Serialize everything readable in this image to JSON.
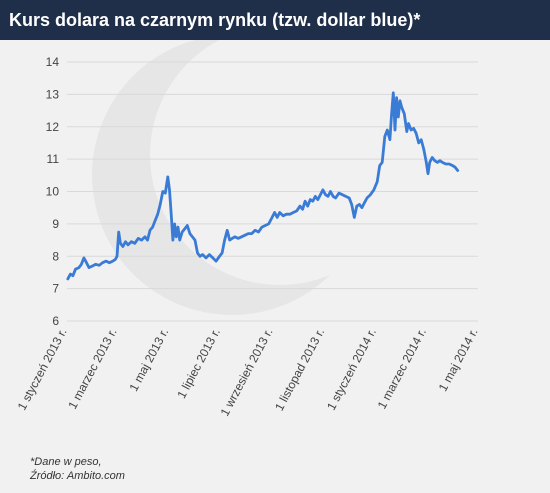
{
  "title": "Kurs dolara na czarnym rynku (tzw. dollar blue)*",
  "footer": {
    "note": "*Dane w peso,",
    "source": "Źródło: Ambito.com"
  },
  "colors": {
    "title_bg": "#1f2f4a",
    "line": "#3a7bd5",
    "background": "#f1f1f1",
    "grid": "#d9d9d9"
  },
  "chart_data": {
    "type": "line",
    "title": "Kurs dolara na czarnym rynku (tzw. dollar blue)*",
    "xlabel": "",
    "ylabel": "",
    "ylim": [
      6,
      14
    ],
    "yticks": [
      6,
      7,
      8,
      9,
      10,
      11,
      12,
      13,
      14
    ],
    "grid": true,
    "xlim": [
      "2013-01-01",
      "2014-05-01"
    ],
    "xtick_labels": [
      {
        "date": "2013-01-01",
        "label": "1 styczeń 2013 r."
      },
      {
        "date": "2013-03-01",
        "label": "1 marzec 2013 r."
      },
      {
        "date": "2013-05-01",
        "label": "1 maj 2013 r."
      },
      {
        "date": "2013-07-01",
        "label": "1 lipiec 2013 r."
      },
      {
        "date": "2013-09-01",
        "label": "1 wrzesień 2013 r."
      },
      {
        "date": "2013-11-01",
        "label": "1 listopad 2013 r."
      },
      {
        "date": "2014-01-01",
        "label": "1 styczeń 2014 r."
      },
      {
        "date": "2014-03-01",
        "label": "1 marzec 2014 r."
      },
      {
        "date": "2014-05-01",
        "label": "1 maj 2014 r."
      }
    ],
    "series": [
      {
        "points": [
          [
            "2013-01-02",
            7.3
          ],
          [
            "2013-01-05",
            7.45
          ],
          [
            "2013-01-08",
            7.4
          ],
          [
            "2013-01-11",
            7.6
          ],
          [
            "2013-01-15",
            7.65
          ],
          [
            "2013-01-18",
            7.75
          ],
          [
            "2013-01-21",
            7.95
          ],
          [
            "2013-01-24",
            7.8
          ],
          [
            "2013-01-27",
            7.65
          ],
          [
            "2013-01-31",
            7.7
          ],
          [
            "2013-02-04",
            7.75
          ],
          [
            "2013-02-08",
            7.72
          ],
          [
            "2013-02-12",
            7.8
          ],
          [
            "2013-02-16",
            7.85
          ],
          [
            "2013-02-20",
            7.8
          ],
          [
            "2013-02-24",
            7.85
          ],
          [
            "2013-02-27",
            7.9
          ],
          [
            "2013-03-01",
            8.0
          ],
          [
            "2013-03-03",
            8.75
          ],
          [
            "2013-03-05",
            8.4
          ],
          [
            "2013-03-08",
            8.3
          ],
          [
            "2013-03-11",
            8.45
          ],
          [
            "2013-03-14",
            8.35
          ],
          [
            "2013-03-18",
            8.45
          ],
          [
            "2013-03-22",
            8.4
          ],
          [
            "2013-03-26",
            8.55
          ],
          [
            "2013-03-30",
            8.5
          ],
          [
            "2013-04-03",
            8.6
          ],
          [
            "2013-04-06",
            8.5
          ],
          [
            "2013-04-09",
            8.8
          ],
          [
            "2013-04-12",
            8.9
          ],
          [
            "2013-04-15",
            9.1
          ],
          [
            "2013-04-18",
            9.3
          ],
          [
            "2013-04-21",
            9.6
          ],
          [
            "2013-04-24",
            10.0
          ],
          [
            "2013-04-27",
            9.95
          ],
          [
            "2013-04-30",
            10.45
          ],
          [
            "2013-05-02",
            10.05
          ],
          [
            "2013-05-04",
            9.3
          ],
          [
            "2013-05-06",
            8.5
          ],
          [
            "2013-05-08",
            9.0
          ],
          [
            "2013-05-10",
            8.6
          ],
          [
            "2013-05-12",
            8.9
          ],
          [
            "2013-05-14",
            8.5
          ],
          [
            "2013-05-17",
            8.75
          ],
          [
            "2013-05-20",
            8.85
          ],
          [
            "2013-05-23",
            8.95
          ],
          [
            "2013-05-26",
            8.7
          ],
          [
            "2013-05-29",
            8.6
          ],
          [
            "2013-06-01",
            8.5
          ],
          [
            "2013-06-04",
            8.1
          ],
          [
            "2013-06-07",
            8.0
          ],
          [
            "2013-06-10",
            8.05
          ],
          [
            "2013-06-14",
            7.95
          ],
          [
            "2013-06-18",
            8.05
          ],
          [
            "2013-06-22",
            7.95
          ],
          [
            "2013-06-26",
            7.85
          ],
          [
            "2013-06-30",
            8.0
          ],
          [
            "2013-07-03",
            8.1
          ],
          [
            "2013-07-06",
            8.5
          ],
          [
            "2013-07-09",
            8.8
          ],
          [
            "2013-07-12",
            8.5
          ],
          [
            "2013-07-15",
            8.55
          ],
          [
            "2013-07-18",
            8.6
          ],
          [
            "2013-07-22",
            8.55
          ],
          [
            "2013-07-26",
            8.6
          ],
          [
            "2013-07-30",
            8.65
          ],
          [
            "2013-08-03",
            8.7
          ],
          [
            "2013-08-07",
            8.7
          ],
          [
            "2013-08-11",
            8.8
          ],
          [
            "2013-08-15",
            8.75
          ],
          [
            "2013-08-19",
            8.9
          ],
          [
            "2013-08-23",
            8.95
          ],
          [
            "2013-08-27",
            9.0
          ],
          [
            "2013-08-31",
            9.2
          ],
          [
            "2013-09-03",
            9.35
          ],
          [
            "2013-09-06",
            9.2
          ],
          [
            "2013-09-09",
            9.35
          ],
          [
            "2013-09-13",
            9.25
          ],
          [
            "2013-09-17",
            9.3
          ],
          [
            "2013-09-21",
            9.3
          ],
          [
            "2013-09-25",
            9.35
          ],
          [
            "2013-09-29",
            9.4
          ],
          [
            "2013-10-03",
            9.55
          ],
          [
            "2013-10-06",
            9.45
          ],
          [
            "2013-10-09",
            9.7
          ],
          [
            "2013-10-12",
            9.55
          ],
          [
            "2013-10-15",
            9.75
          ],
          [
            "2013-10-18",
            9.7
          ],
          [
            "2013-10-21",
            9.85
          ],
          [
            "2013-10-24",
            9.75
          ],
          [
            "2013-10-27",
            9.9
          ],
          [
            "2013-10-30",
            10.05
          ],
          [
            "2013-11-02",
            9.9
          ],
          [
            "2013-11-05",
            9.85
          ],
          [
            "2013-11-08",
            10.0
          ],
          [
            "2013-11-11",
            9.85
          ],
          [
            "2013-11-14",
            9.8
          ],
          [
            "2013-11-18",
            9.95
          ],
          [
            "2013-11-22",
            9.9
          ],
          [
            "2013-11-26",
            9.85
          ],
          [
            "2013-11-30",
            9.8
          ],
          [
            "2013-12-03",
            9.6
          ],
          [
            "2013-12-06",
            9.2
          ],
          [
            "2013-12-09",
            9.55
          ],
          [
            "2013-12-12",
            9.6
          ],
          [
            "2013-12-15",
            9.5
          ],
          [
            "2013-12-18",
            9.65
          ],
          [
            "2013-12-21",
            9.8
          ],
          [
            "2013-12-25",
            9.9
          ],
          [
            "2013-12-29",
            10.05
          ],
          [
            "2014-01-02",
            10.3
          ],
          [
            "2014-01-05",
            10.8
          ],
          [
            "2014-01-08",
            10.9
          ],
          [
            "2014-01-11",
            11.7
          ],
          [
            "2014-01-14",
            11.9
          ],
          [
            "2014-01-17",
            11.6
          ],
          [
            "2014-01-19",
            12.4
          ],
          [
            "2014-01-21",
            13.05
          ],
          [
            "2014-01-23",
            11.9
          ],
          [
            "2014-01-25",
            12.9
          ],
          [
            "2014-01-27",
            12.3
          ],
          [
            "2014-01-29",
            12.8
          ],
          [
            "2014-01-31",
            12.6
          ],
          [
            "2014-02-03",
            12.4
          ],
          [
            "2014-02-06",
            11.85
          ],
          [
            "2014-02-08",
            12.1
          ],
          [
            "2014-02-11",
            11.9
          ],
          [
            "2014-02-14",
            11.95
          ],
          [
            "2014-02-17",
            11.8
          ],
          [
            "2014-02-20",
            11.5
          ],
          [
            "2014-02-23",
            11.6
          ],
          [
            "2014-02-26",
            11.3
          ],
          [
            "2014-03-01",
            10.9
          ],
          [
            "2014-03-03",
            10.55
          ],
          [
            "2014-03-05",
            10.9
          ],
          [
            "2014-03-08",
            11.05
          ],
          [
            "2014-03-11",
            10.95
          ],
          [
            "2014-03-14",
            10.9
          ],
          [
            "2014-03-17",
            10.95
          ],
          [
            "2014-03-20",
            10.9
          ],
          [
            "2014-03-24",
            10.85
          ],
          [
            "2014-03-28",
            10.85
          ],
          [
            "2014-04-01",
            10.8
          ],
          [
            "2014-04-04",
            10.75
          ],
          [
            "2014-04-07",
            10.65
          ]
        ]
      }
    ]
  }
}
